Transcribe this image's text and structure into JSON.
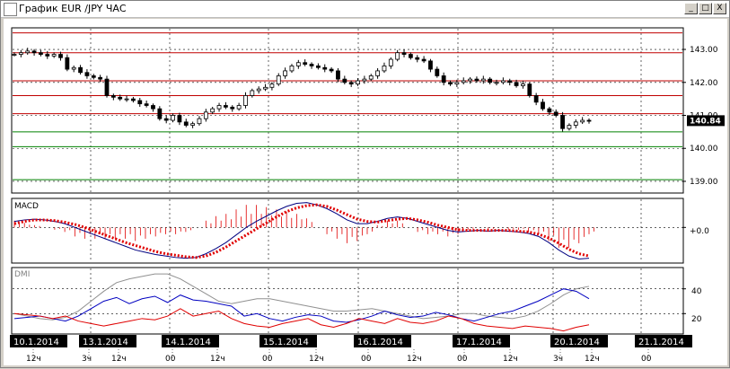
{
  "window": {
    "title": "График EUR /JPY ЧАС",
    "buttons": [
      "_",
      "□",
      "X"
    ]
  },
  "colors": {
    "background": "#ffffff",
    "resistance_line": "#c00000",
    "support_line": "#008000",
    "candle": "#000000",
    "macd_line": "#000080",
    "macd_signal": "#e00000",
    "dmi_adx": "#909090",
    "dmi_plus": "#0000c0",
    "dmi_minus": "#e00000",
    "current_price_bg": "#000000",
    "current_price_fg": "#ffffff"
  },
  "price_panel": {
    "y_ticks": [
      "143.00",
      "142.00",
      "141.00",
      "140.00",
      "139.00"
    ],
    "current_price": "140.84"
  },
  "macd_panel": {
    "label": "MACD",
    "zero_label": "+0.0"
  },
  "dmi_panel": {
    "label": "DMI",
    "y_ticks": [
      "40",
      "20"
    ]
  },
  "time_axis": {
    "dates": [
      "10.1.2014",
      "13.1.2014",
      "14.1.2014",
      "15.1.2014",
      "16.1.2014",
      "17.1.2014",
      "20.1.2014",
      "21.1.2014"
    ],
    "hours": [
      "12ч",
      "3ч",
      "12ч",
      "00",
      "12ч",
      "00",
      "12ч",
      "00",
      "12ч",
      "00",
      "12ч",
      "3ч",
      "12ч",
      "00"
    ]
  },
  "chart_data": [
    {
      "type": "candlestick",
      "title": "",
      "ylim": [
        138.7,
        143.6
      ],
      "y_ticks": [
        143,
        142,
        141,
        140,
        139
      ],
      "horizontal_levels": {
        "resistance": [
          143.5,
          142.9,
          142.05,
          141.6,
          141.05
        ],
        "support": [
          140.5,
          140.05,
          139.05
        ]
      },
      "close": [
        142.85,
        142.9,
        142.95,
        142.9,
        142.85,
        142.8,
        142.85,
        142.75,
        142.4,
        142.45,
        142.3,
        142.2,
        142.15,
        142.1,
        141.6,
        141.55,
        141.5,
        141.5,
        141.45,
        141.35,
        141.3,
        141.2,
        140.9,
        140.85,
        141.0,
        140.8,
        140.7,
        140.75,
        140.9,
        141.1,
        141.2,
        141.3,
        141.25,
        141.2,
        141.3,
        141.6,
        141.75,
        141.8,
        141.85,
        141.95,
        142.2,
        142.35,
        142.5,
        142.6,
        142.55,
        142.5,
        142.45,
        142.4,
        142.35,
        142.1,
        142.0,
        141.95,
        142.05,
        142.1,
        142.2,
        142.35,
        142.5,
        142.7,
        142.9,
        142.85,
        142.75,
        142.7,
        142.65,
        142.4,
        142.2,
        142.0,
        141.95,
        142.0,
        142.05,
        142.1,
        142.05,
        142.1,
        142.0,
        142.0,
        142.05,
        142.0,
        141.9,
        141.95,
        141.6,
        141.4,
        141.2,
        141.1,
        141.0,
        140.6,
        140.7,
        140.8,
        140.85,
        140.84
      ],
      "current_price": 140.84
    },
    {
      "type": "line",
      "name": "MACD",
      "zero_label": "+0.0",
      "ylim": [
        -0.45,
        0.35
      ],
      "series": [
        {
          "values": [
            0.08,
            0.1,
            0.11,
            0.1,
            0.08,
            0.05,
            0.0,
            -0.05,
            -0.1,
            -0.15,
            -0.2,
            -0.25,
            -0.3,
            -0.33,
            -0.36,
            -0.38,
            -0.4,
            -0.41,
            -0.4,
            -0.35,
            -0.28,
            -0.2,
            -0.1,
            0.0,
            0.08,
            0.15,
            0.22,
            0.28,
            0.32,
            0.33,
            0.3,
            0.25,
            0.18,
            0.1,
            0.05,
            0.05,
            0.08,
            0.12,
            0.14,
            0.12,
            0.08,
            0.04,
            0.0,
            -0.04,
            -0.06,
            -0.05,
            -0.04,
            -0.05,
            -0.04,
            -0.05,
            -0.06,
            -0.08,
            -0.12,
            -0.2,
            -0.3,
            -0.38,
            -0.42,
            -0.41
          ]
        },
        {
          "values": [
            0.05,
            0.08,
            0.1,
            0.1,
            0.09,
            0.07,
            0.04,
            0.0,
            -0.05,
            -0.1,
            -0.15,
            -0.2,
            -0.24,
            -0.28,
            -0.32,
            -0.35,
            -0.37,
            -0.39,
            -0.4,
            -0.38,
            -0.33,
            -0.26,
            -0.18,
            -0.1,
            -0.02,
            0.06,
            0.14,
            0.21,
            0.26,
            0.29,
            0.3,
            0.28,
            0.23,
            0.17,
            0.11,
            0.08,
            0.07,
            0.09,
            0.11,
            0.12,
            0.1,
            0.07,
            0.03,
            0.0,
            -0.03,
            -0.04,
            -0.04,
            -0.04,
            -0.04,
            -0.04,
            -0.05,
            -0.06,
            -0.09,
            -0.14,
            -0.21,
            -0.29,
            -0.35,
            -0.38
          ]
        }
      ]
    },
    {
      "type": "line",
      "name": "DMI",
      "ylim": [
        5,
        55
      ],
      "y_ticks": [
        40,
        20
      ],
      "series": [
        {
          "values": [
            20,
            18,
            16,
            15,
            17,
            22,
            30,
            38,
            45,
            48,
            50,
            52,
            52,
            48,
            42,
            36,
            30,
            28,
            30,
            32,
            32,
            30,
            28,
            26,
            24,
            22,
            22,
            23,
            24,
            22,
            20,
            18,
            16,
            17,
            18,
            20,
            20,
            18,
            17,
            16,
            18,
            22,
            28,
            35,
            40,
            42
          ]
        },
        {
          "values": [
            16,
            17,
            18,
            16,
            14,
            18,
            24,
            30,
            33,
            28,
            32,
            34,
            29,
            35,
            31,
            30,
            28,
            26,
            18,
            20,
            16,
            14,
            17,
            19,
            18,
            14,
            13,
            15,
            18,
            22,
            19,
            17,
            18,
            21,
            19,
            16,
            14,
            17,
            20,
            22,
            26,
            30,
            35,
            40,
            38,
            32
          ]
        },
        {
          "values": [
            20,
            19,
            18,
            16,
            18,
            14,
            12,
            10,
            12,
            14,
            16,
            15,
            18,
            24,
            18,
            20,
            22,
            16,
            12,
            10,
            9,
            12,
            14,
            16,
            11,
            9,
            12,
            16,
            14,
            12,
            16,
            13,
            12,
            14,
            18,
            16,
            12,
            10,
            9,
            8,
            10,
            9,
            8,
            6,
            9,
            11
          ]
        }
      ]
    }
  ]
}
